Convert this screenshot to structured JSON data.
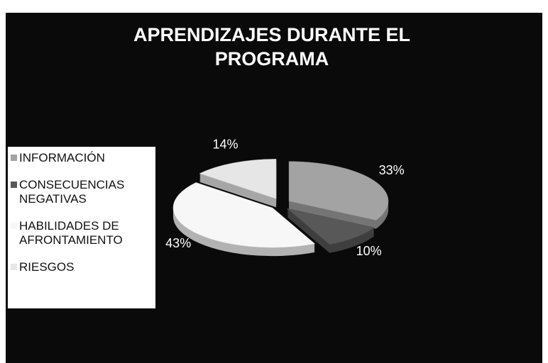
{
  "chart_data": {
    "type": "pie3d",
    "title": "APRENDIZAJES DURANTE EL PROGRAMA",
    "categories": [
      "INFORMACIÓN",
      "CONSECUENCIAS NEGATIVAS",
      "HABILIDADES DE AFRONTAMIENTO",
      "RIESGOS"
    ],
    "values": [
      33,
      10,
      43,
      14
    ],
    "value_labels": [
      "33%",
      "10%",
      "43%",
      "14%"
    ],
    "colors": [
      "#a3a3a3",
      "#585858",
      "#f7f7f7",
      "#e6e6e6"
    ],
    "legend": "left"
  }
}
